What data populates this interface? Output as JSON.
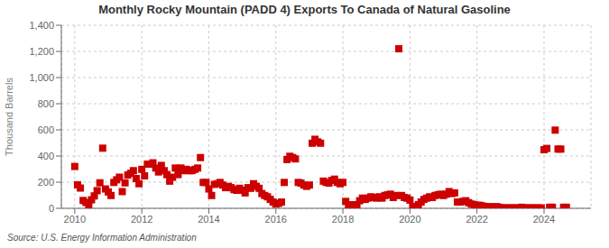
{
  "chart_data": {
    "type": "scatter",
    "title": "Monthly Rocky Mountain (PADD 4) Exports To Canada of Natural Gasoline",
    "ylabel": "Thousand Barrels",
    "source": "Source: U.S. Energy Information Administration",
    "color": "#cc0000",
    "marker": "square",
    "grid": true,
    "xlim": [
      2009.6,
      2025.4
    ],
    "xticks": [
      2010,
      2012,
      2014,
      2016,
      2018,
      2020,
      2022,
      2024
    ],
    "ylim": [
      0,
      1400
    ],
    "yticks": [
      0,
      200,
      400,
      600,
      800,
      {
        "value": 1000,
        "label": "1,000"
      },
      {
        "value": 1200,
        "label": "1,200"
      },
      {
        "value": 1400,
        "label": "1,400"
      }
    ],
    "x": [
      2010.0,
      2010.083,
      2010.167,
      2010.25,
      2010.333,
      2010.417,
      2010.5,
      2010.583,
      2010.667,
      2010.75,
      2010.833,
      2010.917,
      2011.0,
      2011.083,
      2011.167,
      2011.25,
      2011.333,
      2011.417,
      2011.5,
      2011.583,
      2011.667,
      2011.75,
      2011.833,
      2011.917,
      2012.0,
      2012.083,
      2012.167,
      2012.25,
      2012.333,
      2012.417,
      2012.5,
      2012.583,
      2012.667,
      2012.75,
      2012.833,
      2012.917,
      2013.0,
      2013.083,
      2013.167,
      2013.25,
      2013.333,
      2013.417,
      2013.5,
      2013.583,
      2013.667,
      2013.75,
      2013.833,
      2013.917,
      2014.0,
      2014.083,
      2014.167,
      2014.25,
      2014.333,
      2014.417,
      2014.5,
      2014.583,
      2014.667,
      2014.75,
      2014.833,
      2014.917,
      2015.0,
      2015.083,
      2015.167,
      2015.25,
      2015.333,
      2015.417,
      2015.5,
      2015.583,
      2015.667,
      2015.75,
      2015.833,
      2015.917,
      2016.0,
      2016.083,
      2016.167,
      2016.25,
      2016.333,
      2016.417,
      2016.5,
      2016.583,
      2016.667,
      2016.75,
      2016.833,
      2016.917,
      2017.0,
      2017.083,
      2017.167,
      2017.25,
      2017.333,
      2017.417,
      2017.5,
      2017.583,
      2017.667,
      2017.75,
      2017.833,
      2017.917,
      2018.0,
      2018.083,
      2018.167,
      2018.25,
      2018.333,
      2018.417,
      2018.5,
      2018.583,
      2018.667,
      2018.75,
      2018.833,
      2018.917,
      2019.0,
      2019.083,
      2019.167,
      2019.25,
      2019.333,
      2019.417,
      2019.5,
      2019.583,
      2019.667,
      2019.75,
      2019.833,
      2019.917,
      2020.0,
      2020.083,
      2020.167,
      2020.25,
      2020.333,
      2020.417,
      2020.5,
      2020.583,
      2020.667,
      2020.75,
      2020.833,
      2020.917,
      2021.0,
      2021.083,
      2021.167,
      2021.25,
      2021.333,
      2021.417,
      2021.5,
      2021.583,
      2021.667,
      2021.75,
      2021.833,
      2021.917,
      2022.0,
      2022.083,
      2022.167,
      2022.25,
      2022.333,
      2022.417,
      2022.5,
      2022.583,
      2022.667,
      2022.75,
      2022.833,
      2022.917,
      2023.0,
      2023.083,
      2023.167,
      2023.25,
      2023.333,
      2023.417,
      2023.5,
      2023.583,
      2023.667,
      2023.75,
      2023.833,
      2023.917,
      2024.0,
      2024.083,
      2024.167,
      2024.25,
      2024.333,
      2024.417,
      2024.5,
      2024.583,
      2024.667
    ],
    "values": [
      320,
      180,
      155,
      60,
      45,
      28,
      65,
      95,
      135,
      195,
      460,
      148,
      125,
      98,
      198,
      218,
      238,
      128,
      195,
      255,
      268,
      288,
      228,
      188,
      298,
      248,
      338,
      338,
      348,
      308,
      278,
      328,
      288,
      258,
      208,
      238,
      308,
      258,
      308,
      288,
      298,
      288,
      288,
      298,
      308,
      388,
      198,
      198,
      148,
      98,
      183,
      188,
      198,
      178,
      158,
      168,
      158,
      143,
      138,
      153,
      138,
      118,
      158,
      153,
      188,
      168,
      153,
      113,
      98,
      88,
      68,
      48,
      33,
      38,
      48,
      198,
      373,
      398,
      388,
      378,
      198,
      193,
      178,
      168,
      178,
      498,
      528,
      508,
      498,
      208,
      198,
      193,
      213,
      223,
      198,
      188,
      198,
      53,
      23,
      28,
      23,
      28,
      58,
      78,
      68,
      78,
      88,
      83,
      78,
      88,
      78,
      98,
      103,
      108,
      83,
      98,
      1220,
      98,
      83,
      78,
      63,
      13,
      8,
      28,
      48,
      68,
      78,
      88,
      83,
      98,
      103,
      108,
      98,
      108,
      128,
      113,
      118,
      48,
      48,
      53,
      58,
      43,
      33,
      28,
      23,
      23,
      18,
      13,
      8,
      13,
      8,
      13,
      8,
      3,
      3,
      3,
      3,
      3,
      3,
      3,
      8,
      3,
      3,
      3,
      3,
      3,
      3,
      3,
      448,
      458,
      8,
      8,
      598,
      453,
      453,
      8,
      8
    ]
  }
}
